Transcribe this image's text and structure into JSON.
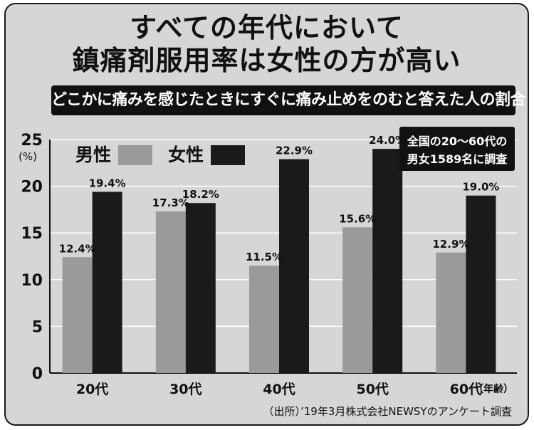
{
  "title_line1": "すべての年代において",
  "title_line2": "鎮痛剤服用率は女性の方が高い",
  "subtitle": "どこかに痛みを感じたときにすぐに痛み止めをのむと答えた人の割合",
  "note_line1": "全国の20～60代の",
  "note_line2": "男女1589名に調査",
  "source": "（出所）’19年3月株式会社NEWSYのアンケート調査",
  "colors": {
    "male": "#9a9a9a",
    "female": "#1a1a1a",
    "background": "#d6d6d6"
  },
  "chart_data": {
    "type": "bar",
    "categories": [
      "20代",
      "30代",
      "40代",
      "50代",
      "60代"
    ],
    "series": [
      {
        "name": "男性",
        "values": [
          12.4,
          17.3,
          11.5,
          15.6,
          12.9
        ]
      },
      {
        "name": "女性",
        "values": [
          19.4,
          18.2,
          22.9,
          24.0,
          19.0
        ]
      }
    ],
    "data_labels": {
      "male": [
        "12.4%",
        "17.3%",
        "11.5%",
        "15.6%",
        "12.9%"
      ],
      "female": [
        "19.4%",
        "18.2%",
        "22.9%",
        "24.0%",
        "19.0%"
      ]
    },
    "yticks": [
      "0",
      "5",
      "10",
      "15",
      "20",
      "25"
    ],
    "ytick_values": [
      0,
      5,
      10,
      15,
      20,
      25
    ],
    "ylabel": "(%)",
    "xlabel": "（年齢）",
    "ylim": [
      0,
      25
    ],
    "grid": true,
    "legend_position": "top-left"
  }
}
